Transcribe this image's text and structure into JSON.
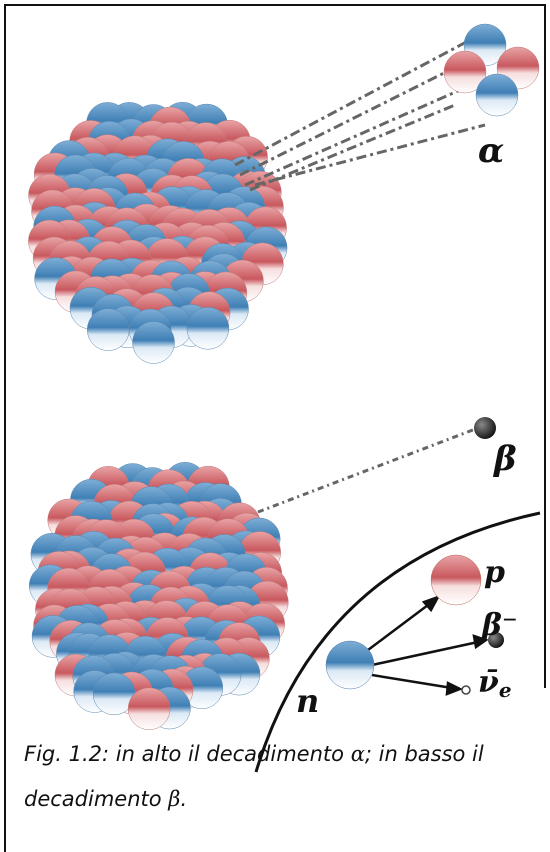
{
  "labels": {
    "alpha": "α",
    "beta": "β",
    "proton": "p",
    "beta_minus": "β⁻",
    "neutron": "n",
    "neutrino": "ν̄",
    "neutrino_sub": "e"
  },
  "caption": {
    "label": "Fig. 1.2:",
    "text_1": "in alto il decadimento",
    "alpha": "α",
    "text_2": "; in basso il decadimento",
    "beta": "β",
    "end": "."
  }
}
